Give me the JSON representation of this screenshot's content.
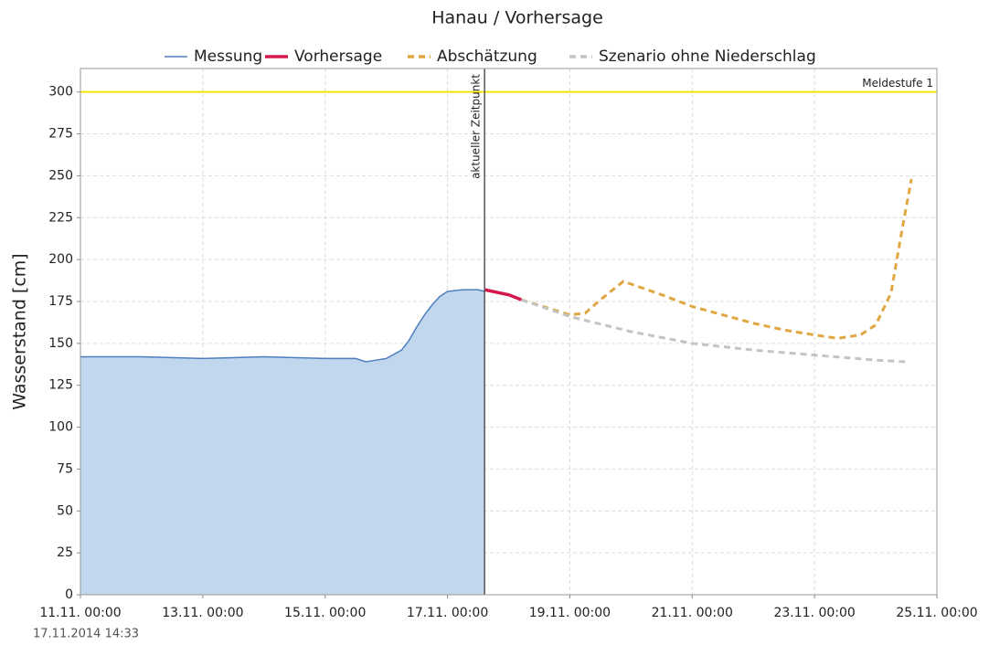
{
  "chart_data": {
    "type": "line",
    "title": "Hanau / Vorhersage",
    "ylabel": "Wasserstand [cm]",
    "footer": "17.11.2014  14:33",
    "xlim": [
      "2014-11-11T00:00",
      "2014-11-25T00:00"
    ],
    "xticks": [
      {
        "value": "2014-11-11T00:00",
        "label": "11.11. 00:00"
      },
      {
        "value": "2014-11-13T00:00",
        "label": "13.11. 00:00"
      },
      {
        "value": "2014-11-15T00:00",
        "label": "15.11. 00:00"
      },
      {
        "value": "2014-11-17T00:00",
        "label": "17.11. 00:00"
      },
      {
        "value": "2014-11-19T00:00",
        "label": "19.11. 00:00"
      },
      {
        "value": "2014-11-21T00:00",
        "label": "21.11. 00:00"
      },
      {
        "value": "2014-11-23T00:00",
        "label": "23.11. 00:00"
      },
      {
        "value": "2014-11-25T00:00",
        "label": "25.11. 00:00"
      }
    ],
    "ylim": [
      0,
      314
    ],
    "yticks": [
      0,
      25,
      50,
      75,
      100,
      125,
      150,
      175,
      200,
      225,
      250,
      275,
      300
    ],
    "grid": true,
    "thresholds": [
      {
        "label": "Meldestufe 1",
        "value": 300,
        "color": "#f2e600"
      }
    ],
    "marker": {
      "x": "2014-11-17T14:33",
      "label": "aktueller Zeitpunkt"
    },
    "series": [
      {
        "name": "Messung",
        "color": "#4f7fbf",
        "fill": "#c0d7ee",
        "dash": false,
        "x": [
          "2014-11-11T00:00",
          "2014-11-12T00:00",
          "2014-11-13T00:00",
          "2014-11-14T00:00",
          "2014-11-15T00:00",
          "2014-11-15T12:00",
          "2014-11-15T16:00",
          "2014-11-15T20:00",
          "2014-11-16T00:00",
          "2014-11-16T06:00",
          "2014-11-16T09:00",
          "2014-11-16T12:00",
          "2014-11-16T15:00",
          "2014-11-16T18:00",
          "2014-11-16T21:00",
          "2014-11-17T00:00",
          "2014-11-17T06:00",
          "2014-11-17T12:00",
          "2014-11-17T14:33"
        ],
        "values": [
          142,
          142,
          141,
          142,
          141,
          141,
          139,
          140,
          141,
          146,
          152,
          160,
          167,
          173,
          178,
          181,
          182,
          182,
          181
        ]
      },
      {
        "name": "Vorhersage",
        "color": "#d6174a",
        "dash": false,
        "x": [
          "2014-11-17T14:33",
          "2014-11-18T00:00",
          "2014-11-18T05:00"
        ],
        "values": [
          182,
          179,
          176
        ]
      },
      {
        "name": "Abschätzung",
        "color": "#e0a640",
        "dash": true,
        "x": [
          "2014-11-18T05:00",
          "2014-11-19T00:00",
          "2014-11-19T06:00",
          "2014-11-19T12:00",
          "2014-11-19T21:00",
          "2014-11-20T12:00",
          "2014-11-21T00:00",
          "2014-11-21T12:00",
          "2014-11-22T00:00",
          "2014-11-22T12:00",
          "2014-11-23T00:00",
          "2014-11-23T09:00",
          "2014-11-23T18:00",
          "2014-11-24T00:00",
          "2014-11-24T06:00",
          "2014-11-24T10:00",
          "2014-11-24T14:00"
        ],
        "values": [
          176,
          167,
          168,
          176,
          187,
          179,
          172,
          167,
          162,
          158,
          155,
          153,
          155,
          161,
          180,
          215,
          248
        ]
      },
      {
        "name": "Szenario ohne Niederschlag",
        "color": "#c4c4c4",
        "dash": true,
        "x": [
          "2014-11-18T05:00",
          "2014-11-19T00:00",
          "2014-11-20T00:00",
          "2014-11-21T00:00",
          "2014-11-22T00:00",
          "2014-11-23T00:00",
          "2014-11-24T00:00",
          "2014-11-24T12:00"
        ],
        "values": [
          176,
          166,
          157,
          150,
          146,
          143,
          140,
          139
        ]
      }
    ]
  }
}
